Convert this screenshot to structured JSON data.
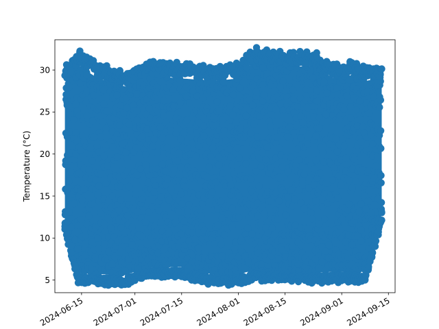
{
  "chart_data": {
    "type": "scatter",
    "title": "",
    "xlabel": "",
    "ylabel": "Temperature (°C)",
    "x_axis": {
      "kind": "date",
      "range": [
        "2024-06-07",
        "2024-09-17"
      ],
      "ticks": [
        "2024-06-15",
        "2024-07-01",
        "2024-07-15",
        "2024-08-01",
        "2024-08-15",
        "2024-09-01",
        "2024-09-15"
      ]
    },
    "y_axis": {
      "range": [
        3.5,
        33.6
      ],
      "ticks": [
        5,
        10,
        15,
        20,
        25,
        30
      ]
    },
    "grid": false,
    "legend": "none",
    "series": [
      {
        "color": "#1f77b4",
        "marker": "circle",
        "x_start": "2024-06-10",
        "x_end": "2024-09-13",
        "y_min_approx": 4.5,
        "y_max_approx": 32.3,
        "description_points": [
          {
            "x": "2024-06-10",
            "y_low": 11.0,
            "y_high": 30.0
          },
          {
            "x": "2024-06-14",
            "y_low": 4.8,
            "y_high": 32.0
          },
          {
            "x": "2024-06-20",
            "y_low": 4.7,
            "y_high": 30.5
          },
          {
            "x": "2024-06-28",
            "y_low": 4.6,
            "y_high": 29.5
          },
          {
            "x": "2024-07-05",
            "y_low": 5.5,
            "y_high": 30.8
          },
          {
            "x": "2024-07-15",
            "y_low": 5.6,
            "y_high": 30.5
          },
          {
            "x": "2024-07-25",
            "y_low": 4.6,
            "y_high": 30.2
          },
          {
            "x": "2024-08-01",
            "y_low": 4.7,
            "y_high": 30.5
          },
          {
            "x": "2024-08-06",
            "y_low": 5.2,
            "y_high": 32.3
          },
          {
            "x": "2024-08-15",
            "y_low": 5.1,
            "y_high": 31.8
          },
          {
            "x": "2024-08-23",
            "y_low": 4.9,
            "y_high": 32.0
          },
          {
            "x": "2024-09-01",
            "y_low": 5.0,
            "y_high": 30.0
          },
          {
            "x": "2024-09-04",
            "y_low": 5.0,
            "y_high": 31.0
          },
          {
            "x": "2024-09-08",
            "y_low": 5.0,
            "y_high": 30.2
          },
          {
            "x": "2024-09-13",
            "y_low": 12.0,
            "y_high": 30.5
          }
        ]
      }
    ]
  }
}
